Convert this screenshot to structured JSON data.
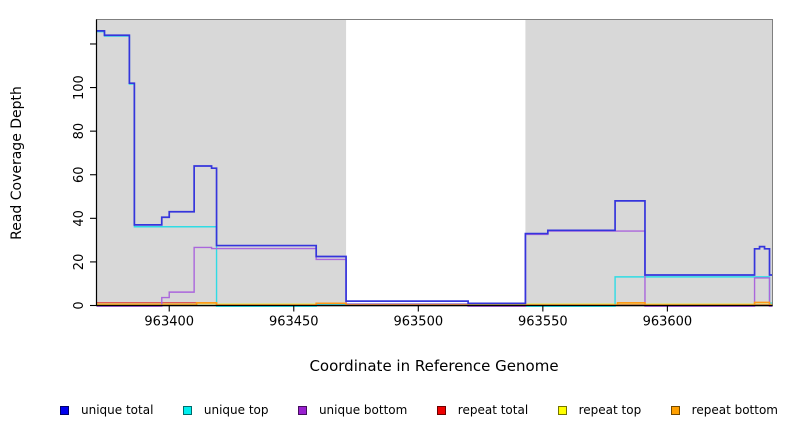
{
  "figure": {
    "xlabel": "Coordinate in Reference Genome",
    "ylabel": "Read Coverage Depth",
    "background_color": "#ffffff",
    "shaded_band_color": "#d8d8d8",
    "x_tick_labels": [
      "963400",
      "963450",
      "963500",
      "963550",
      "963600"
    ],
    "y_tick_labels": [
      "0",
      "20",
      "40",
      "60",
      "80",
      "100"
    ]
  },
  "legend": {
    "items": [
      {
        "label": "unique total",
        "color": "#0000EE"
      },
      {
        "label": "unique top",
        "color": "#00EEEE"
      },
      {
        "label": "unique bottom",
        "color": "#9920D0"
      },
      {
        "label": "repeat total",
        "color": "#EE0000"
      },
      {
        "label": "repeat top",
        "color": "#FFFF00"
      },
      {
        "label": "repeat bottom",
        "color": "#FFA000"
      }
    ]
  },
  "chart_data": {
    "type": "line",
    "step_style": "post",
    "title": "",
    "xlabel": "Coordinate in Reference Genome",
    "ylabel": "Read Coverage Depth",
    "xlim": [
      963371,
      963642
    ],
    "ylim": [
      0,
      131
    ],
    "x_ticks": [
      963400,
      963450,
      963500,
      963550,
      963600
    ],
    "y_ticks": [
      0,
      20,
      40,
      60,
      80,
      100
    ],
    "y_extra_unlabeled_ticks": [
      120
    ],
    "grid": false,
    "legend_position": "bottom",
    "shaded_x_bands": [
      [
        963371,
        963471
      ],
      [
        963543,
        963642
      ]
    ],
    "shaded_band_meaning": "repeat regions of reference genome",
    "series": [
      {
        "name": "repeat total",
        "color": "#E04545",
        "width": 1.3,
        "opacity": 1,
        "dy": -0.5,
        "points": [
          [
            963371,
            1
          ],
          [
            963419,
            0
          ]
        ]
      },
      {
        "name": "repeat top",
        "color": "#EDED2E",
        "width": 1.3,
        "opacity": 0.6,
        "dy": -1.6,
        "points": [
          [
            963371,
            0
          ]
        ]
      },
      {
        "name": "unique top",
        "color": "#2FDCE4",
        "width": 1.4,
        "opacity": 1,
        "dy": 0.8,
        "points": [
          [
            963371,
            126
          ],
          [
            963374,
            124
          ],
          [
            963384,
            102
          ],
          [
            963386,
            36.5
          ],
          [
            963419,
            0
          ],
          [
            963459,
            1
          ],
          [
            963543,
            0
          ],
          [
            963579,
            13.5
          ],
          [
            963641,
            1.5
          ]
        ]
      },
      {
        "name": "unique bottom",
        "color": "#AA66DC",
        "width": 1.4,
        "opacity": 1,
        "dy": 0.8,
        "points": [
          [
            963371,
            0
          ],
          [
            963397,
            4
          ],
          [
            963400,
            6.5
          ],
          [
            963410,
            27
          ],
          [
            963417,
            26.5
          ],
          [
            963459,
            21.5
          ],
          [
            963471,
            1
          ],
          [
            963520,
            0
          ],
          [
            963543,
            33
          ],
          [
            963552,
            34.5
          ],
          [
            963591,
            0
          ],
          [
            963635,
            13
          ],
          [
            963641,
            0
          ]
        ]
      },
      {
        "name": "repeat bottom",
        "color": "#FF9818",
        "width": 1.6,
        "opacity": 1,
        "dy": -0.5,
        "points": [
          [
            963371,
            0
          ],
          [
            963411,
            1
          ],
          [
            963419,
            0
          ],
          [
            963459,
            0.8
          ],
          [
            963471,
            0
          ],
          [
            963580,
            1
          ],
          [
            963591,
            0
          ],
          [
            963635,
            1.2
          ],
          [
            963641,
            0
          ]
        ]
      },
      {
        "name": "unique total",
        "color": "#3535DC",
        "width": 1.7,
        "opacity": 1,
        "dy": 0,
        "points": [
          [
            963371,
            126
          ],
          [
            963374,
            124
          ],
          [
            963384,
            102
          ],
          [
            963386,
            37
          ],
          [
            963397,
            40.5
          ],
          [
            963400,
            43
          ],
          [
            963410,
            64
          ],
          [
            963417,
            63
          ],
          [
            963419,
            27.5
          ],
          [
            963459,
            22.5
          ],
          [
            963471,
            2
          ],
          [
            963520,
            1
          ],
          [
            963543,
            33
          ],
          [
            963552,
            34.5
          ],
          [
            963579,
            48
          ],
          [
            963591,
            14
          ],
          [
            963635,
            26
          ],
          [
            963637,
            27
          ],
          [
            963639,
            26
          ],
          [
            963641,
            14
          ]
        ]
      }
    ]
  }
}
